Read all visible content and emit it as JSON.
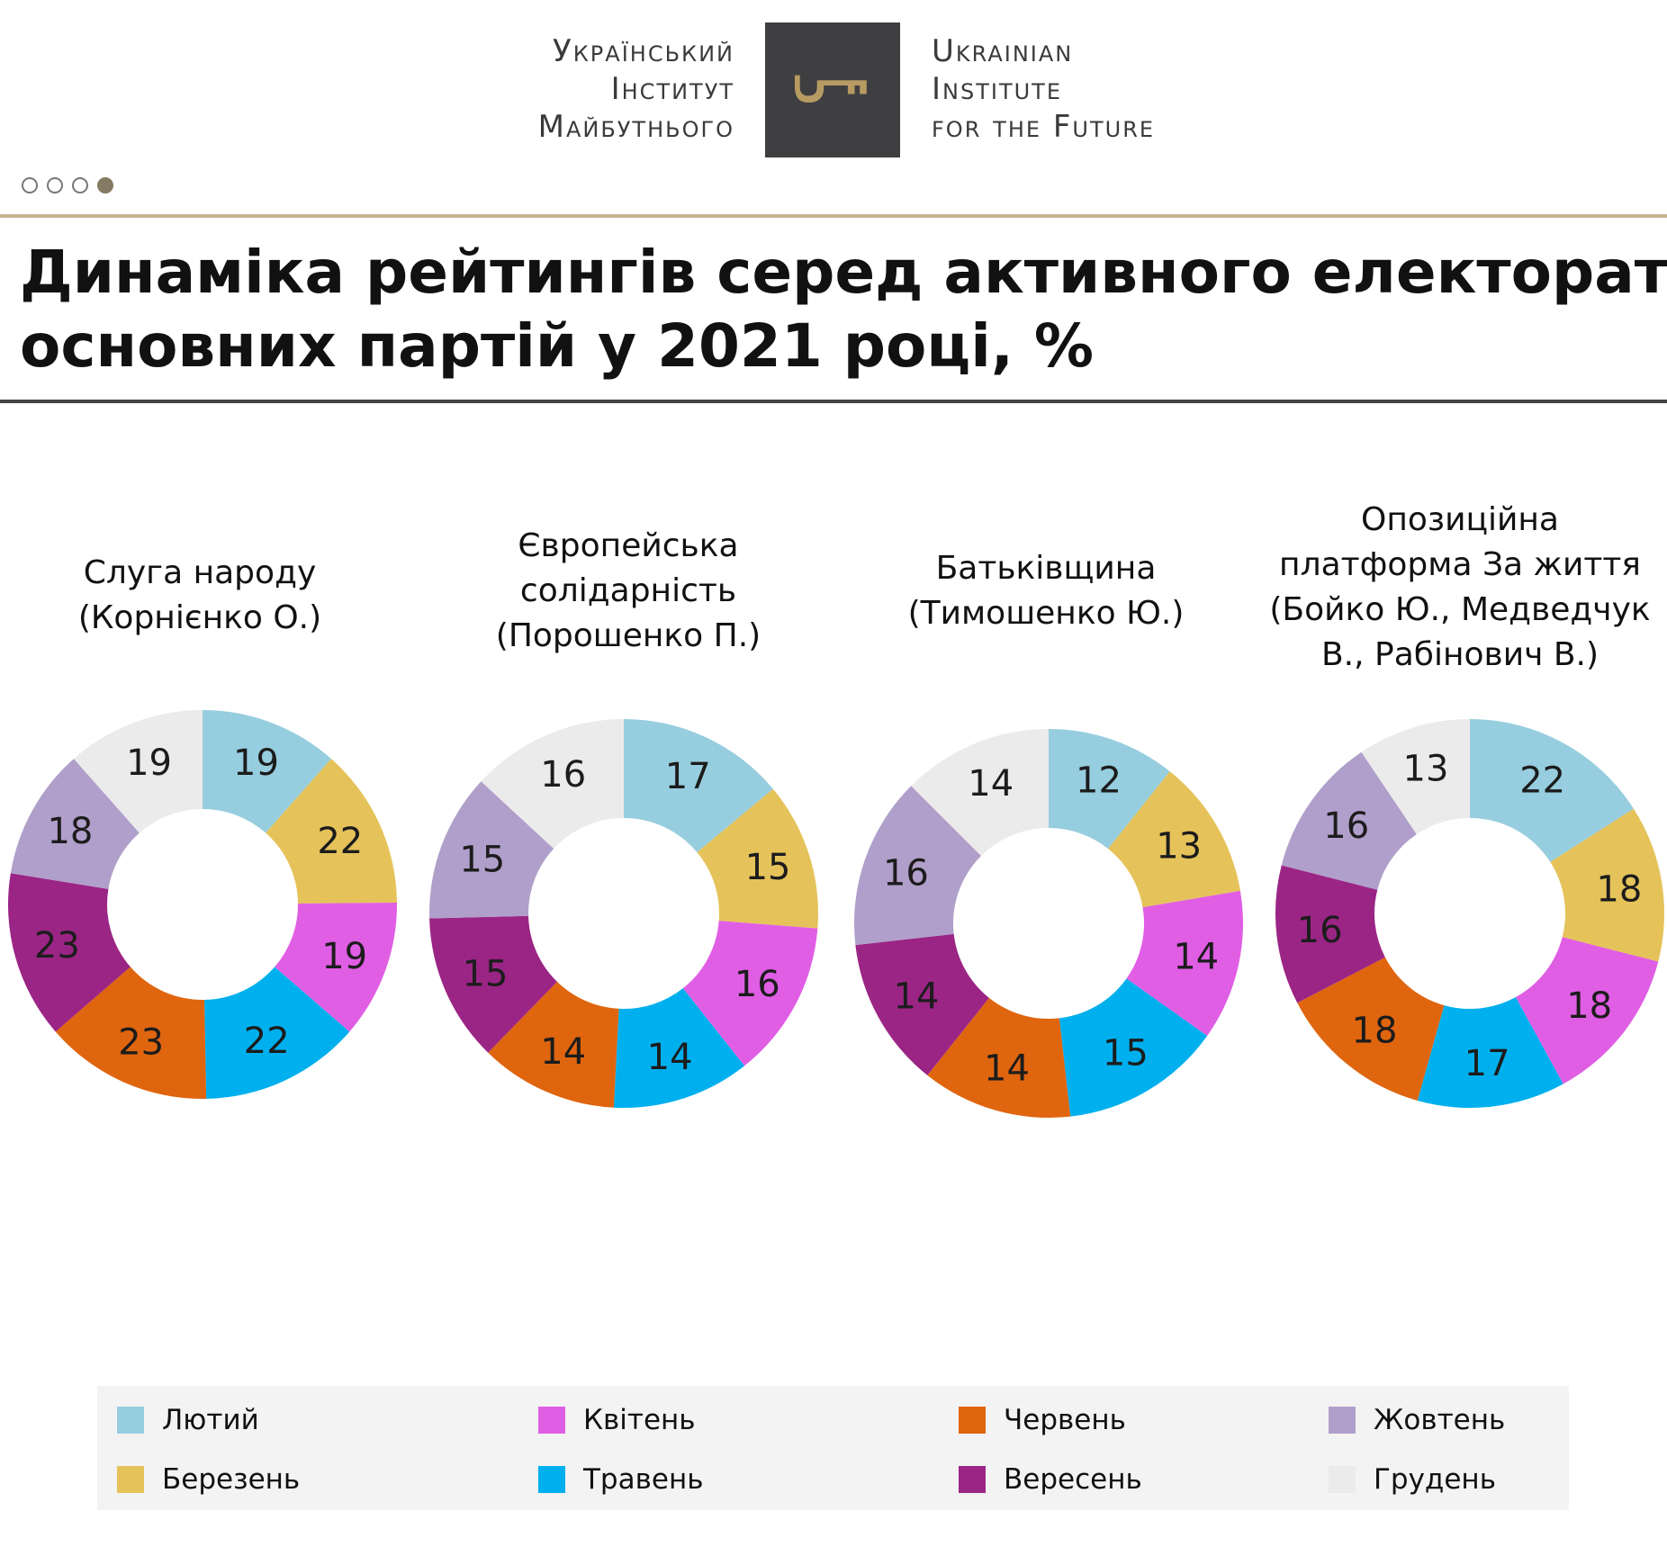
{
  "logo": {
    "ua_lines": [
      "Український",
      "Інститут",
      "Майбутнього"
    ],
    "en_lines": [
      "Ukrainian",
      "Institute",
      "for the Future"
    ]
  },
  "pager": {
    "total": 4,
    "active": 4
  },
  "title_lines": [
    "Динаміка рейтингів серед активного електорату",
    "основних партій у 2021 році, %"
  ],
  "colors": {
    "Лютий": "#97cedf",
    "Березень": "#e5c35a",
    "Квітень": "#e05ee4",
    "Травень": "#00b0ee",
    "Червень": "#e0650f",
    "Вересень": "#9b2585",
    "Жовтень": "#b09fca",
    "Грудень": "#ebebeb"
  },
  "chart_data": {
    "type": "donut",
    "unit": "%",
    "categories": [
      "Лютий",
      "Березень",
      "Квітень",
      "Травень",
      "Червень",
      "Вересень",
      "Жовтень",
      "Грудень"
    ],
    "series": [
      {
        "name_lines": [
          "Слуга народу",
          "(Корнієнко О.)"
        ],
        "values": [
          19,
          22,
          19,
          22,
          23,
          23,
          18,
          19
        ]
      },
      {
        "name_lines": [
          "Європейська",
          "солідарність",
          "(Порошенко П.)"
        ],
        "values": [
          17,
          15,
          16,
          14,
          14,
          15,
          15,
          16
        ]
      },
      {
        "name_lines": [
          "Батьківщина",
          "(Тимошенко Ю.)"
        ],
        "values": [
          12,
          13,
          14,
          15,
          14,
          14,
          16,
          14
        ]
      },
      {
        "name_lines": [
          "Опозиційна",
          "платформа За життя",
          "(Бойко Ю., Медведчук",
          "В.,  Рабінович В.)"
        ],
        "values": [
          22,
          18,
          18,
          17,
          18,
          16,
          16,
          13
        ]
      }
    ],
    "legend": {
      "rows": [
        [
          "Лютий",
          "Квітень",
          "Червень",
          "Жовтень"
        ],
        [
          "Березень",
          "Травень",
          "Вересень",
          "Грудень"
        ]
      ]
    }
  }
}
